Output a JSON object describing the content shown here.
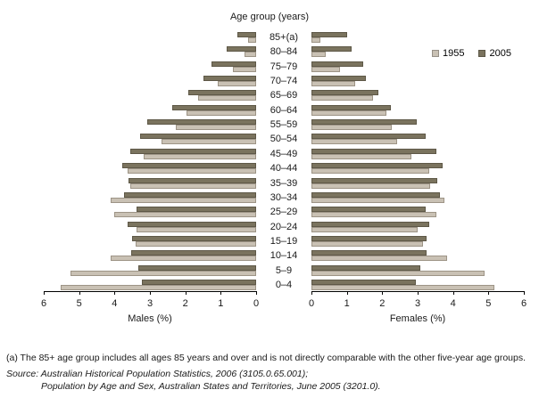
{
  "chart": {
    "title": "Age group (years)",
    "legend": [
      {
        "label": "1955",
        "color": "#c9c1b4"
      },
      {
        "label": "2005",
        "color": "#7a735e"
      }
    ],
    "left_axis_label": "Males (%)",
    "right_axis_label": "Females (%)",
    "left_axis_ticks": [
      "6",
      "5",
      "4",
      "3",
      "2",
      "1",
      "0"
    ],
    "right_axis_ticks": [
      "0",
      "1",
      "2",
      "3",
      "4",
      "5",
      "6"
    ],
    "colors": {
      "series_1955": "#c9c1b4",
      "series_2005": "#7a735e",
      "axis": "#000000"
    }
  },
  "chart_data": {
    "type": "bar",
    "subtype": "population-pyramid",
    "title": "Age group (years)",
    "xlabel_left": "Males (%)",
    "xlabel_right": "Females (%)",
    "xlim": [
      0,
      6
    ],
    "grid": false,
    "legend_position": "upper-right",
    "categories": [
      "85+(a)",
      "80–84",
      "75–79",
      "70–74",
      "65–69",
      "60–64",
      "55–59",
      "50–54",
      "45–49",
      "40–44",
      "35–39",
      "30–34",
      "25–29",
      "20–24",
      "15–19",
      "10–14",
      "5–9",
      "0–4"
    ],
    "series": [
      {
        "name": "Males 2005",
        "side": "left",
        "year": "2005",
        "values": [
          0.52,
          0.84,
          1.25,
          1.5,
          1.92,
          2.36,
          3.08,
          3.27,
          3.56,
          3.78,
          3.61,
          3.73,
          3.39,
          3.62,
          3.51,
          3.54,
          3.34,
          3.23
        ]
      },
      {
        "name": "Males 1955",
        "side": "left",
        "year": "1955",
        "values": [
          0.23,
          0.34,
          0.66,
          1.09,
          1.64,
          1.96,
          2.26,
          2.67,
          3.18,
          3.63,
          3.55,
          4.1,
          4.02,
          3.37,
          3.41,
          4.11,
          5.24,
          5.51
        ]
      },
      {
        "name": "Females 2005",
        "side": "right",
        "year": "2005",
        "values": [
          1.02,
          1.14,
          1.45,
          1.55,
          1.89,
          2.24,
          2.97,
          3.22,
          3.52,
          3.71,
          3.55,
          3.62,
          3.22,
          3.34,
          3.24,
          3.24,
          3.08,
          2.94
        ]
      },
      {
        "name": "Females 1955",
        "side": "right",
        "year": "1955",
        "values": [
          0.24,
          0.4,
          0.81,
          1.24,
          1.75,
          2.13,
          2.26,
          2.41,
          2.82,
          3.34,
          3.35,
          3.76,
          3.52,
          3.01,
          3.15,
          3.82,
          4.88,
          5.16
        ]
      }
    ]
  },
  "footer": {
    "footnote": "(a) The 85+ age group includes all ages 85 years and over and is not directly comparable with the other five-year age groups.",
    "source_line1": "Source: Australian Historical Population Statistics, 2006 (3105.0.65.001);",
    "source_line2": "Population by Age and Sex, Australian States and Territories, June 2005 (3201.0)."
  }
}
